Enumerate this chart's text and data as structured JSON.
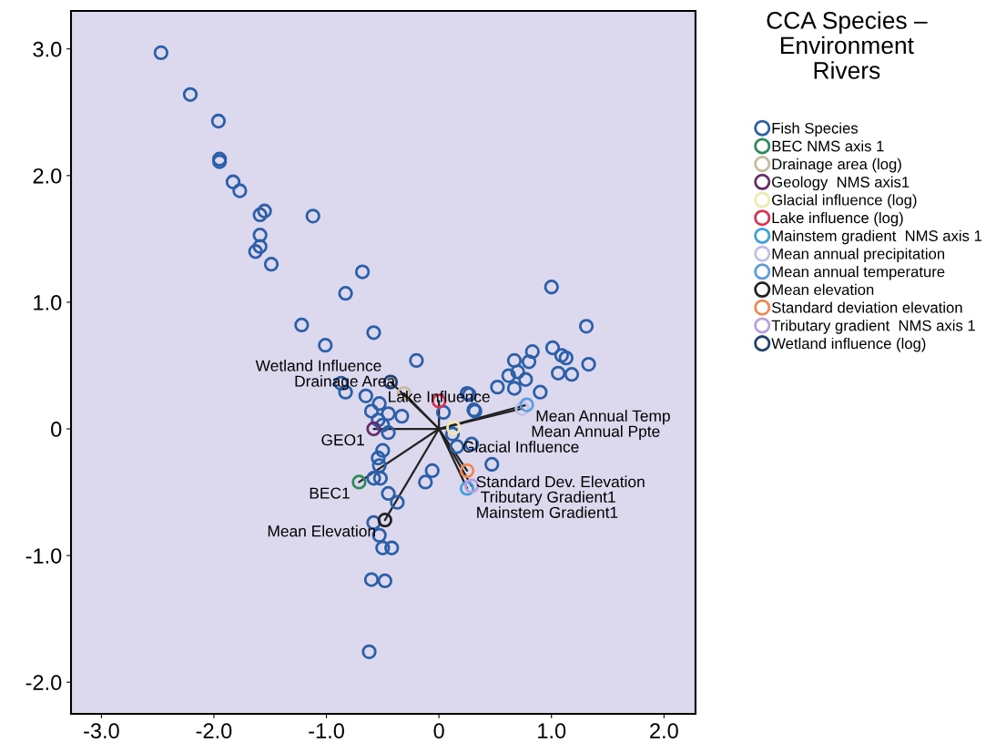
{
  "chart_data": {
    "type": "scatter",
    "title": "CCA Species –\nEnvironment\nRivers",
    "xlim": [
      -3.27,
      2.28
    ],
    "ylim": [
      -2.25,
      3.3
    ],
    "xticks": [
      {
        "value": -3,
        "label": "-3.0"
      },
      {
        "value": -2,
        "label": "-2.0"
      },
      {
        "value": -1,
        "label": "-1.0"
      },
      0,
      {
        "value": 1,
        "label": "1.0"
      },
      {
        "value": 2,
        "label": "2.0"
      }
    ],
    "yticks": [
      {
        "value": -2,
        "label": "-2.0"
      },
      {
        "value": -1,
        "label": "-1.0"
      },
      0,
      {
        "value": 1,
        "label": "1.0"
      },
      {
        "value": 2,
        "label": "2.0"
      },
      {
        "value": 3,
        "label": "3.0"
      }
    ],
    "grid": false,
    "legend": "right",
    "marker": "circle",
    "series": [
      {
        "name": "Fish Species",
        "color": "#2b5fa8",
        "x": [
          -2.47,
          -2.21,
          -1.96,
          -1.95,
          -1.95,
          -1.83,
          -1.77,
          -1.59,
          -1.55,
          -1.12,
          -1.59,
          -1.59,
          -1.63,
          -1.49,
          -0.68,
          -0.83,
          -1.22,
          -1.01,
          -0.58,
          -0.2,
          -0.87,
          -0.83,
          -0.65,
          -0.53,
          -0.6,
          -0.45,
          -0.33,
          -0.54,
          -0.5,
          -0.45,
          0.04,
          -0.5,
          -0.54,
          -0.53,
          -0.58,
          -0.52,
          -0.45,
          -0.37,
          -0.06,
          -0.12,
          -0.58,
          -0.53,
          -0.5,
          -0.42,
          -0.6,
          -0.48,
          -0.62,
          0.12,
          0.16,
          0.29,
          0.47,
          0.31,
          0.25,
          1.0,
          1.31,
          1.01,
          1.09,
          1.13,
          1.33,
          1.06,
          1.18,
          0.83,
          0.8,
          0.67,
          0.7,
          0.62,
          0.77,
          0.67,
          0.52,
          0.9,
          0.27,
          0.32
        ],
        "values": [
          2.97,
          2.64,
          2.43,
          2.13,
          2.11,
          1.95,
          1.88,
          1.69,
          1.72,
          1.68,
          1.53,
          1.44,
          1.4,
          1.3,
          1.24,
          1.07,
          0.82,
          0.66,
          0.76,
          0.54,
          0.36,
          0.29,
          0.26,
          0.2,
          0.14,
          0.12,
          0.1,
          0.07,
          0.03,
          -0.03,
          0.13,
          -0.17,
          -0.23,
          -0.29,
          -0.39,
          -0.39,
          -0.51,
          -0.58,
          -0.33,
          -0.42,
          -0.74,
          -0.84,
          -0.94,
          -0.94,
          -1.19,
          -1.2,
          -1.76,
          -0.04,
          -0.14,
          -0.12,
          -0.28,
          0.15,
          0.28,
          1.12,
          0.81,
          0.64,
          0.58,
          0.56,
          0.51,
          0.44,
          0.43,
          0.61,
          0.53,
          0.54,
          0.45,
          0.42,
          0.39,
          0.32,
          0.33,
          0.29,
          0.27,
          0.14
        ]
      },
      {
        "name": "BEC NMS axis 1",
        "color": "#2e8b57",
        "x": [
          -0.71
        ],
        "values": [
          -0.42
        ]
      },
      {
        "name": "Drainage area (log)",
        "color": "#c8bca0",
        "x": [
          -0.31
        ],
        "values": [
          0.28
        ]
      },
      {
        "name": "Geology  NMS axis1",
        "color": "#6a2a6a",
        "x": [
          -0.58
        ],
        "values": [
          0.0
        ]
      },
      {
        "name": "Glacial influence (log)",
        "color": "#f0e8b0",
        "x": [
          0.13
        ],
        "values": [
          0.01
        ]
      },
      {
        "name": "Lake influence (log)",
        "color": "#e03050",
        "x": [
          0.0
        ],
        "values": [
          0.22
        ]
      },
      {
        "name": "Mainstem gradient  NMS axis 1",
        "color": "#3fa0e0",
        "x": [
          0.25
        ],
        "values": [
          -0.47
        ]
      },
      {
        "name": "Mean annual precipitation",
        "color": "#c0c0e8",
        "x": [
          0.74
        ],
        "values": [
          0.16
        ]
      },
      {
        "name": "Mean annual temperature",
        "color": "#5b9be0",
        "x": [
          0.78
        ],
        "values": [
          0.19
        ]
      },
      {
        "name": "Mean elevation",
        "color": "#222222",
        "x": [
          -0.48
        ],
        "values": [
          -0.72
        ]
      },
      {
        "name": "Standard deviation elevation",
        "color": "#f08850",
        "x": [
          0.25
        ],
        "values": [
          -0.33
        ]
      },
      {
        "name": "Tributary gradient  NMS axis 1",
        "color": "#b8a0e0",
        "x": [
          0.29
        ],
        "values": [
          -0.45
        ]
      },
      {
        "name": "Wetland influence (log)",
        "color": "#1f3f6f",
        "x": [
          -0.43
        ],
        "values": [
          0.37
        ]
      }
    ],
    "annotations": [
      {
        "text": "Wetland Influence",
        "x": -0.43,
        "y": 0.37
      },
      {
        "text": "Lake Influence",
        "x": 0.0,
        "y": 0.22
      },
      {
        "text": "Drainage Area",
        "x": -0.31,
        "y": 0.28
      },
      {
        "text": "Mean Annual Temp",
        "x": 0.78,
        "y": 0.19
      },
      {
        "text": "Mean Annual Ppte",
        "x": 0.74,
        "y": 0.16
      },
      {
        "text": "Glacial Influence",
        "x": 0.13,
        "y": 0.01
      },
      {
        "text": "GEO1",
        "x": -0.58,
        "y": 0.0
      },
      {
        "text": "Standard Dev. Elevation",
        "x": 0.25,
        "y": -0.33
      },
      {
        "text": "Tributary Gradient1",
        "x": 0.29,
        "y": -0.45
      },
      {
        "text": "BEC1",
        "x": -0.71,
        "y": -0.42
      },
      {
        "text": "Mainstem Gradient1",
        "x": 0.25,
        "y": -0.47
      },
      {
        "text": "Mean Elevation",
        "x": -0.48,
        "y": -0.72
      }
    ]
  }
}
